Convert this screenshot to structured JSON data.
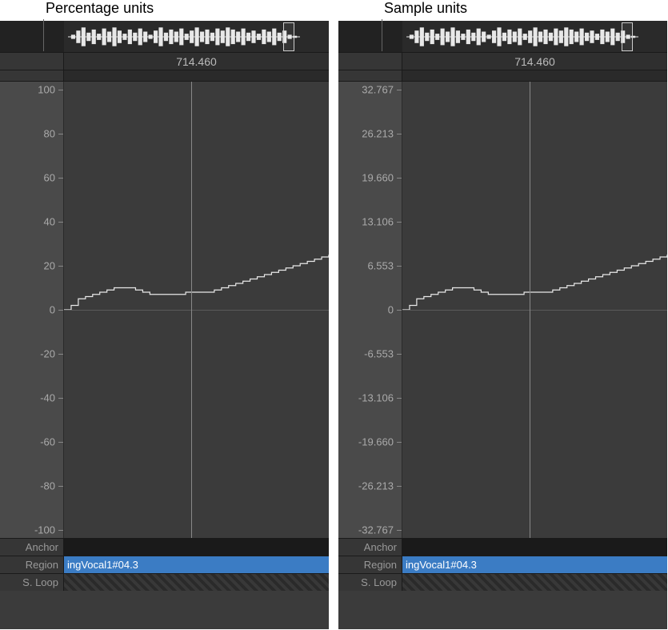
{
  "callouts": {
    "left": "Percentage units",
    "right": "Sample units"
  },
  "timeline_value": "714.460",
  "footer": {
    "anchor_label": "Anchor",
    "region_label": "Region",
    "region_value": "ingVocal1#04.3",
    "sloop_label": "S. Loop"
  },
  "panels": {
    "percentage": {
      "y_ticks": [
        "100",
        "80",
        "60",
        "40",
        "20",
        "0",
        "-20",
        "-40",
        "-60",
        "-80",
        "-100"
      ],
      "y_range": [
        -100,
        100
      ]
    },
    "sample": {
      "y_ticks": [
        "32.767",
        "26.213",
        "19.660",
        "13.106",
        "6.553",
        "0",
        "-6.553",
        "-13.106",
        "-19.660",
        "-26.213",
        "-32.767"
      ],
      "y_range": [
        -32.767,
        32.767
      ]
    }
  },
  "waveform": {
    "color": "#e8e8e8",
    "stroke_width": 1.2,
    "samples_normalized": [
      0.0,
      0.02,
      0.05,
      0.06,
      0.07,
      0.08,
      0.09,
      0.1,
      0.1,
      0.1,
      0.09,
      0.08,
      0.07,
      0.07,
      0.07,
      0.07,
      0.07,
      0.08,
      0.08,
      0.08,
      0.08,
      0.09,
      0.1,
      0.11,
      0.12,
      0.13,
      0.14,
      0.15,
      0.16,
      0.17,
      0.18,
      0.19,
      0.2,
      0.21,
      0.22,
      0.23,
      0.24,
      0.25
    ]
  },
  "overview_waveform": {
    "color": "#e8e8e8",
    "envelope": [
      0.0,
      0.2,
      0.6,
      0.9,
      0.4,
      0.7,
      0.3,
      0.8,
      0.5,
      0.9,
      0.6,
      0.3,
      0.7,
      0.4,
      0.8,
      0.5,
      0.2,
      0.6,
      0.9,
      0.4,
      0.7,
      0.5,
      0.8,
      0.3,
      0.6,
      0.9,
      0.5,
      0.7,
      0.4,
      0.8,
      0.6,
      0.9,
      0.7,
      0.5,
      0.8,
      0.4,
      0.6,
      0.3,
      0.7,
      0.5,
      0.8,
      0.4,
      0.6,
      0.2,
      0.1
    ]
  },
  "colors": {
    "panel_bg": "#3b3b3b",
    "y_axis_bg": "#4a4a4a",
    "tick_text": "#aaaaaa",
    "region_highlight": "#3b7cc4",
    "waveform_stroke": "#e8e8e8",
    "playhead": "#888888"
  }
}
